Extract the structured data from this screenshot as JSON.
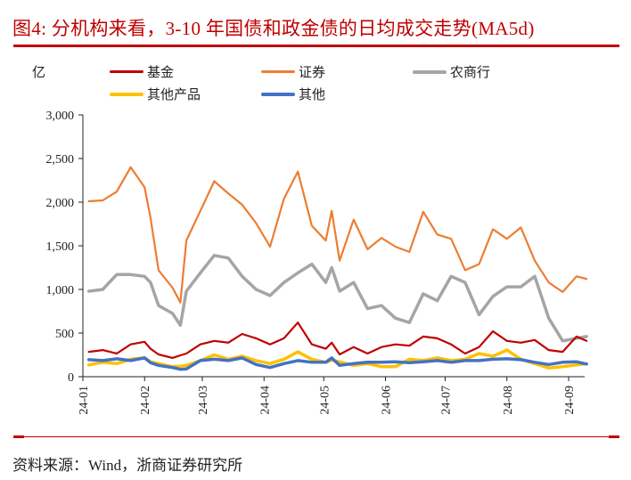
{
  "title": "图4:   分机构来看，3-10 年国债和政金债的日均成交走势(MA5d)",
  "source": "资料来源：Wind，浙商证券研究所",
  "chart_data": {
    "type": "line",
    "title": "分机构来看，3-10 年国债和政金债的日均成交走势(MA5d)",
    "ylabel": "亿",
    "xlabel": "",
    "ylim": [
      0,
      3000
    ],
    "yticks": [
      0,
      500,
      1000,
      1500,
      2000,
      2500,
      3000
    ],
    "ytick_labels": [
      "0",
      "500",
      "1,000",
      "1,500",
      "2,000",
      "2,500",
      "3,000"
    ],
    "xlim": [
      "2024-01-01",
      "2024-09-13"
    ],
    "xticks": [
      "2024-01-01",
      "2024-02-01",
      "2024-03-01",
      "2024-04-01",
      "2024-05-01",
      "2024-06-01",
      "2024-07-01",
      "2024-08-01",
      "2024-09-01"
    ],
    "xtick_labels": [
      "24-01",
      "24-02",
      "24-03",
      "24-04",
      "24-05",
      "24-06",
      "24-07",
      "24-08",
      "24-09"
    ],
    "grid": false,
    "legend": "top",
    "x": [
      "2024-01-04",
      "2024-01-11",
      "2024-01-18",
      "2024-01-25",
      "2024-02-01",
      "2024-02-04",
      "2024-02-08",
      "2024-02-15",
      "2024-02-19",
      "2024-02-22",
      "2024-02-29",
      "2024-03-07",
      "2024-03-14",
      "2024-03-21",
      "2024-03-28",
      "2024-04-04",
      "2024-04-11",
      "2024-04-18",
      "2024-04-25",
      "2024-05-02",
      "2024-05-05",
      "2024-05-09",
      "2024-05-16",
      "2024-05-23",
      "2024-05-30",
      "2024-06-06",
      "2024-06-13",
      "2024-06-20",
      "2024-06-27",
      "2024-07-04",
      "2024-07-11",
      "2024-07-18",
      "2024-07-25",
      "2024-08-01",
      "2024-08-08",
      "2024-08-15",
      "2024-08-22",
      "2024-08-29",
      "2024-09-05",
      "2024-09-10"
    ],
    "series": [
      {
        "name": "基金",
        "color": "#c00000",
        "values": [
          285,
          305,
          265,
          370,
          400,
          320,
          255,
          215,
          245,
          265,
          370,
          410,
          390,
          490,
          440,
          370,
          440,
          620,
          370,
          320,
          390,
          255,
          340,
          265,
          340,
          370,
          355,
          460,
          440,
          370,
          265,
          340,
          520,
          410,
          390,
          420,
          305,
          285,
          460,
          410
        ]
      },
      {
        "name": "证券",
        "color": "#ed7d31",
        "values": [
          2010,
          2020,
          2120,
          2400,
          2170,
          1820,
          1220,
          1020,
          850,
          1560,
          1900,
          2240,
          2100,
          1970,
          1760,
          1490,
          2040,
          2350,
          1730,
          1560,
          1900,
          1330,
          1800,
          1460,
          1590,
          1490,
          1430,
          1890,
          1630,
          1580,
          1220,
          1290,
          1690,
          1580,
          1710,
          1330,
          1080,
          970,
          1150,
          1120
        ]
      },
      {
        "name": "农商行",
        "color": "#a5a5a5",
        "values": [
          980,
          1000,
          1170,
          1170,
          1150,
          1080,
          815,
          725,
          590,
          980,
          1190,
          1390,
          1360,
          1150,
          1000,
          930,
          1080,
          1190,
          1290,
          1080,
          1250,
          980,
          1080,
          780,
          815,
          670,
          620,
          950,
          870,
          1150,
          1080,
          710,
          920,
          1030,
          1030,
          1150,
          670,
          410,
          440,
          460
        ]
      },
      {
        "name": "其他产品",
        "color": "#ffc000",
        "values": [
          135,
          165,
          150,
          200,
          215,
          170,
          150,
          115,
          120,
          130,
          185,
          250,
          200,
          235,
          185,
          150,
          200,
          285,
          200,
          165,
          190,
          170,
          130,
          150,
          115,
          115,
          200,
          185,
          215,
          185,
          200,
          265,
          235,
          305,
          200,
          150,
          100,
          115,
          135,
          150
        ]
      },
      {
        "name": "其他",
        "color": "#4472c4",
        "values": [
          195,
          185,
          205,
          185,
          215,
          160,
          130,
          105,
          85,
          90,
          185,
          200,
          185,
          215,
          140,
          105,
          150,
          185,
          165,
          165,
          215,
          130,
          150,
          165,
          165,
          170,
          160,
          170,
          185,
          165,
          185,
          185,
          200,
          205,
          195,
          165,
          140,
          165,
          170,
          145
        ]
      }
    ]
  }
}
